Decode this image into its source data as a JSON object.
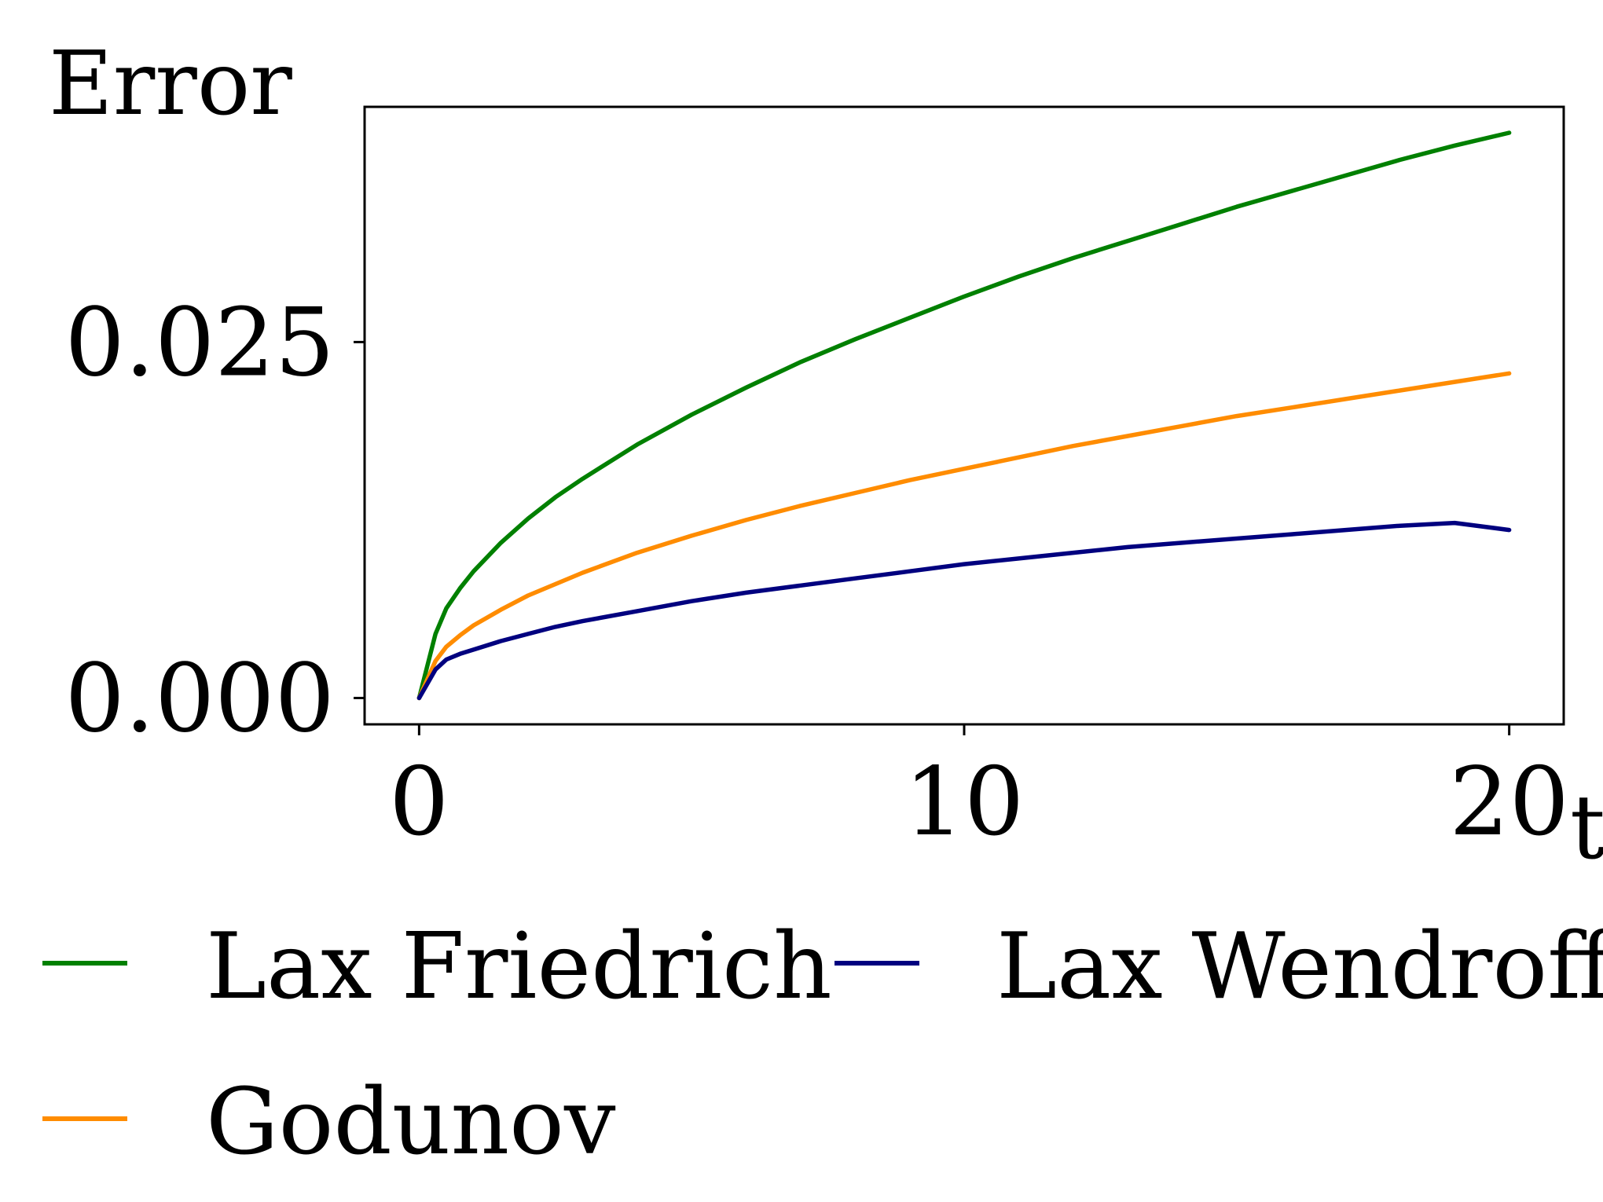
{
  "chart_data": {
    "type": "line",
    "ylabel": "Error",
    "xlabel": "t",
    "xlim": [
      -1,
      21
    ],
    "ylim": [
      -0.00185,
      0.04152
    ],
    "xticks": [
      0,
      10,
      20
    ],
    "xtick_labels": [
      "0",
      "10",
      "20"
    ],
    "yticks": [
      0.0,
      0.025
    ],
    "ytick_labels": [
      "0.000",
      "0.025"
    ],
    "grid": false,
    "legend_position": "bottom",
    "series": [
      {
        "name": "Lax Friedrich",
        "color": "#008000",
        "x": [
          0,
          0.3,
          0.5,
          0.75,
          1,
          1.5,
          2,
          2.5,
          3,
          4,
          5,
          6,
          7,
          8,
          9,
          10,
          11,
          12,
          13,
          14,
          15,
          16,
          17,
          18,
          19,
          20
        ],
        "y": [
          0.0,
          0.0045,
          0.0063,
          0.0077,
          0.0089,
          0.0109,
          0.0126,
          0.0141,
          0.0154,
          0.0178,
          0.0199,
          0.0218,
          0.0236,
          0.0252,
          0.0267,
          0.0282,
          0.0296,
          0.0309,
          0.0321,
          0.0333,
          0.0345,
          0.0356,
          0.0367,
          0.0378,
          0.0388,
          0.0397
        ]
      },
      {
        "name": "Godunov",
        "color": "#ff8c00",
        "x": [
          0,
          0.3,
          0.5,
          0.75,
          1,
          1.5,
          2,
          2.5,
          3,
          4,
          5,
          6,
          7,
          8,
          9,
          10,
          11,
          12,
          13,
          14,
          15,
          16,
          17,
          18,
          19,
          20
        ],
        "y": [
          0.0,
          0.0026,
          0.0036,
          0.0044,
          0.0051,
          0.0062,
          0.0072,
          0.008,
          0.0088,
          0.0102,
          0.0114,
          0.0125,
          0.0135,
          0.0144,
          0.0153,
          0.0161,
          0.0169,
          0.0177,
          0.0184,
          0.0191,
          0.0198,
          0.0204,
          0.021,
          0.0216,
          0.0222,
          0.0228
        ]
      },
      {
        "name": "Lax Wendroff",
        "color": "#00007f",
        "x": [
          0,
          0.3,
          0.5,
          0.75,
          1,
          1.5,
          2,
          2.5,
          3,
          4,
          5,
          6,
          7,
          8,
          9,
          10,
          11,
          12,
          13,
          14,
          15,
          16,
          17,
          18,
          19,
          20
        ],
        "y": [
          0.0,
          0.002,
          0.0027,
          0.0031,
          0.0034,
          0.004,
          0.0045,
          0.005,
          0.0054,
          0.0061,
          0.0068,
          0.0074,
          0.0079,
          0.0084,
          0.0089,
          0.0094,
          0.0098,
          0.0102,
          0.0106,
          0.0109,
          0.0112,
          0.0115,
          0.0118,
          0.0121,
          0.0123,
          0.0118
        ]
      }
    ]
  }
}
